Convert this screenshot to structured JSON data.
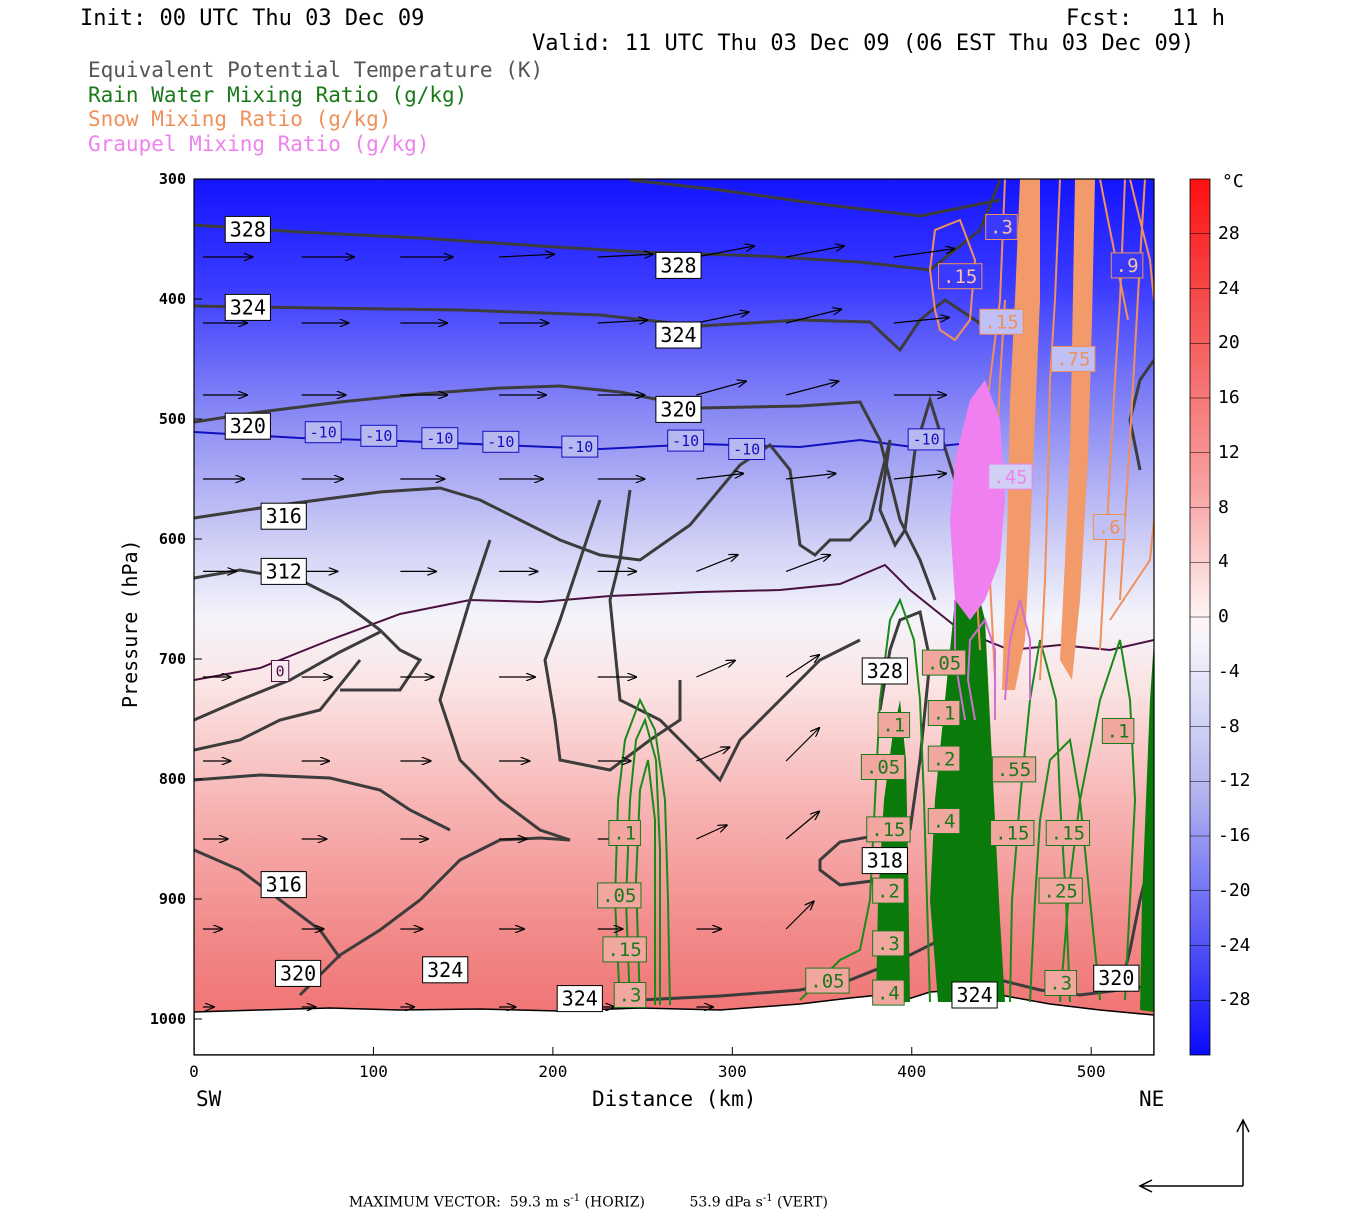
{
  "header": {
    "init": "Init: 00 UTC Thu 03 Dec 09",
    "fcst": "Fcst:   11 h",
    "valid": "Valid: 11 UTC Thu 03 Dec 09 (06 EST Thu 03 Dec 09)"
  },
  "legend": [
    {
      "label": "Equivalent Potential Temperature (K)",
      "color": "#555555"
    },
    {
      "label": "Rain Water Mixing Ratio (g/kg)",
      "color": "#1a7a1a"
    },
    {
      "label": "Snow Mixing Ratio (g/kg)",
      "color": "#f0905a"
    },
    {
      "label": "Graupel Mixing Ratio (g/kg)",
      "color": "#ee82ee"
    }
  ],
  "footer": {
    "max_label": "MAXIMUM VECTOR:",
    "horiz_value": "59.3 m s",
    "horiz_exp": "-1",
    "horiz_unit": " (HORIZ)",
    "vert_value": "53.9 dPa s",
    "vert_exp": "-1",
    "vert_unit": " (VERT)"
  },
  "chart_data": {
    "type": "cross-section",
    "xlabel": "Distance (km)",
    "ylabel": "Pressure (hPa)",
    "x_end_labels": {
      "left": "SW",
      "right": "NE"
    },
    "xlim": [
      0,
      535
    ],
    "ylim": [
      1030,
      300
    ],
    "x_ticks": [
      0,
      100,
      200,
      300,
      400,
      500
    ],
    "y_ticks": [
      300,
      400,
      500,
      600,
      700,
      800,
      900,
      1000
    ],
    "colorbar": {
      "unit": "°C",
      "range": [
        -32,
        32
      ],
      "ticks": [
        28,
        24,
        20,
        16,
        12,
        8,
        4,
        0,
        -4,
        -8,
        -12,
        -16,
        -20,
        -24,
        -28
      ]
    },
    "theta_e_labels": [
      {
        "text": "328",
        "x": 30,
        "p": 342
      },
      {
        "text": "324",
        "x": 30,
        "p": 407
      },
      {
        "text": "320",
        "x": 30,
        "p": 506
      },
      {
        "text": "316",
        "x": 50,
        "p": 581
      },
      {
        "text": "312",
        "x": 50,
        "p": 627
      },
      {
        "text": "328",
        "x": 270,
        "p": 372
      },
      {
        "text": "324",
        "x": 270,
        "p": 430
      },
      {
        "text": "320",
        "x": 270,
        "p": 492
      },
      {
        "text": "316",
        "x": 50,
        "p": 888
      },
      {
        "text": "320",
        "x": 58,
        "p": 962
      },
      {
        "text": "324",
        "x": 140,
        "p": 959
      },
      {
        "text": "324",
        "x": 215,
        "p": 983
      },
      {
        "text": "328",
        "x": 385,
        "p": 710
      },
      {
        "text": "318",
        "x": 385,
        "p": 868
      },
      {
        "text": "324",
        "x": 435,
        "p": 980
      },
      {
        "text": "320",
        "x": 514,
        "p": 966
      }
    ],
    "temp_labels": [
      {
        "text": "-10",
        "x": 72,
        "p": 511
      },
      {
        "text": "-10",
        "x": 103,
        "p": 514
      },
      {
        "text": "-10",
        "x": 137,
        "p": 516
      },
      {
        "text": "-10",
        "x": 171,
        "p": 519
      },
      {
        "text": "-10",
        "x": 215,
        "p": 523
      },
      {
        "text": "-10",
        "x": 274,
        "p": 518
      },
      {
        "text": "-10",
        "x": 308,
        "p": 525
      },
      {
        "text": "-10",
        "x": 408,
        "p": 517
      },
      {
        "text": "0",
        "x": 48,
        "p": 710
      }
    ],
    "rain_labels": [
      {
        "text": ".1",
        "x": 240,
        "p": 845
      },
      {
        "text": ".05",
        "x": 237,
        "p": 897
      },
      {
        "text": ".15",
        "x": 240,
        "p": 942
      },
      {
        "text": ".3",
        "x": 243,
        "p": 980
      },
      {
        "text": ".05",
        "x": 353,
        "p": 968
      },
      {
        "text": ".1",
        "x": 390,
        "p": 755
      },
      {
        "text": ".05",
        "x": 384,
        "p": 790
      },
      {
        "text": ".15",
        "x": 387,
        "p": 842
      },
      {
        "text": ".2",
        "x": 387,
        "p": 893
      },
      {
        "text": ".3",
        "x": 387,
        "p": 937
      },
      {
        "text": ".4",
        "x": 387,
        "p": 978
      },
      {
        "text": ".05",
        "x": 418,
        "p": 703
      },
      {
        "text": ".1",
        "x": 418,
        "p": 745
      },
      {
        "text": ".2",
        "x": 418,
        "p": 783
      },
      {
        "text": ".4",
        "x": 418,
        "p": 835
      },
      {
        "text": ".55",
        "x": 457,
        "p": 792
      },
      {
        "text": ".15",
        "x": 456,
        "p": 845
      },
      {
        "text": ".15",
        "x": 487,
        "p": 845
      },
      {
        "text": ".25",
        "x": 483,
        "p": 893
      },
      {
        "text": ".3",
        "x": 483,
        "p": 970
      },
      {
        "text": ".1",
        "x": 515,
        "p": 760
      }
    ],
    "snow_labels": [
      {
        "text": ".15",
        "x": 427,
        "p": 381
      },
      {
        "text": ".15",
        "x": 450,
        "p": 419
      },
      {
        "text": ".75",
        "x": 490,
        "p": 450
      },
      {
        "text": ".6",
        "x": 510,
        "p": 590
      },
      {
        "text": ".9",
        "x": 520,
        "p": 372
      },
      {
        "text": ".3",
        "x": 450,
        "p": 340
      }
    ],
    "graupel_labels": [
      {
        "text": ".45",
        "x": 455,
        "p": 548
      }
    ],
    "vectors": {
      "rows": [
        {
          "p": 365,
          "x": [
            5,
            60,
            115,
            170,
            225,
            280,
            330,
            390
          ],
          "u": [
            0.9,
            0.95,
            0.95,
            1.0,
            1.0,
            1.05,
            1.05,
            1.1
          ],
          "w": [
            0,
            0,
            0,
            0.05,
            0.05,
            0.2,
            0.2,
            0.15
          ]
        },
        {
          "p": 420,
          "x": [
            5,
            60,
            115,
            170,
            225,
            280,
            330,
            390
          ],
          "u": [
            0.8,
            0.85,
            0.85,
            0.9,
            0.9,
            0.95,
            1.0,
            1.0
          ],
          "w": [
            0,
            0,
            0,
            0,
            0.05,
            0.2,
            0.25,
            0.1
          ]
        },
        {
          "p": 480,
          "x": [
            5,
            60,
            115,
            170,
            225,
            280,
            330,
            390
          ],
          "u": [
            0.8,
            0.8,
            0.85,
            0.85,
            0.85,
            0.9,
            0.95,
            0.95
          ],
          "w": [
            0,
            0,
            0,
            0,
            0,
            0.25,
            0.25,
            0
          ]
        },
        {
          "p": 550,
          "x": [
            5,
            60,
            115,
            170,
            225,
            280,
            330,
            390
          ],
          "u": [
            0.75,
            0.75,
            0.8,
            0.8,
            0.85,
            0.85,
            0.9,
            0.95
          ],
          "w": [
            0,
            0,
            0,
            0,
            0,
            0.1,
            0.1,
            0.1
          ]
        },
        {
          "p": 627,
          "x": [
            5,
            60,
            115,
            170,
            225,
            280,
            330
          ],
          "u": [
            0.6,
            0.65,
            0.65,
            0.7,
            0.7,
            0.75,
            0.8
          ],
          "w": [
            0,
            0,
            0,
            0,
            0,
            0.3,
            0.3
          ]
        },
        {
          "p": 715,
          "x": [
            5,
            60,
            115,
            170,
            225,
            280,
            330
          ],
          "u": [
            0.5,
            0.55,
            0.6,
            0.65,
            0.7,
            0.7,
            0.6
          ],
          "w": [
            0,
            0,
            0,
            0,
            0,
            0.3,
            0.4
          ]
        },
        {
          "p": 785,
          "x": [
            5,
            60,
            115,
            170,
            225,
            280,
            330
          ],
          "u": [
            0.5,
            0.5,
            0.55,
            0.55,
            0.6,
            0.6,
            0.6
          ],
          "w": [
            0,
            0,
            0,
            0,
            0,
            0.25,
            0.6
          ]
        },
        {
          "p": 850,
          "x": [
            5,
            60,
            115,
            170,
            225,
            280,
            330
          ],
          "u": [
            0.45,
            0.45,
            0.5,
            0.5,
            0.5,
            0.55,
            0.6
          ],
          "w": [
            0,
            0,
            0,
            0,
            0,
            0.25,
            0.5
          ]
        },
        {
          "p": 925,
          "x": [
            5,
            60,
            115,
            170,
            225,
            280,
            330
          ],
          "u": [
            0.35,
            0.4,
            0.4,
            0.45,
            0.45,
            0.45,
            0.5
          ],
          "w": [
            0,
            0,
            0,
            0,
            0,
            0,
            0.5
          ]
        },
        {
          "p": 990,
          "x": [
            5,
            60,
            115,
            170,
            225,
            280
          ],
          "u": [
            0.2,
            0.25,
            0.25,
            0.3,
            0.3,
            0.3
          ],
          "w": [
            0,
            0,
            0,
            0,
            0,
            0
          ]
        }
      ]
    }
  }
}
